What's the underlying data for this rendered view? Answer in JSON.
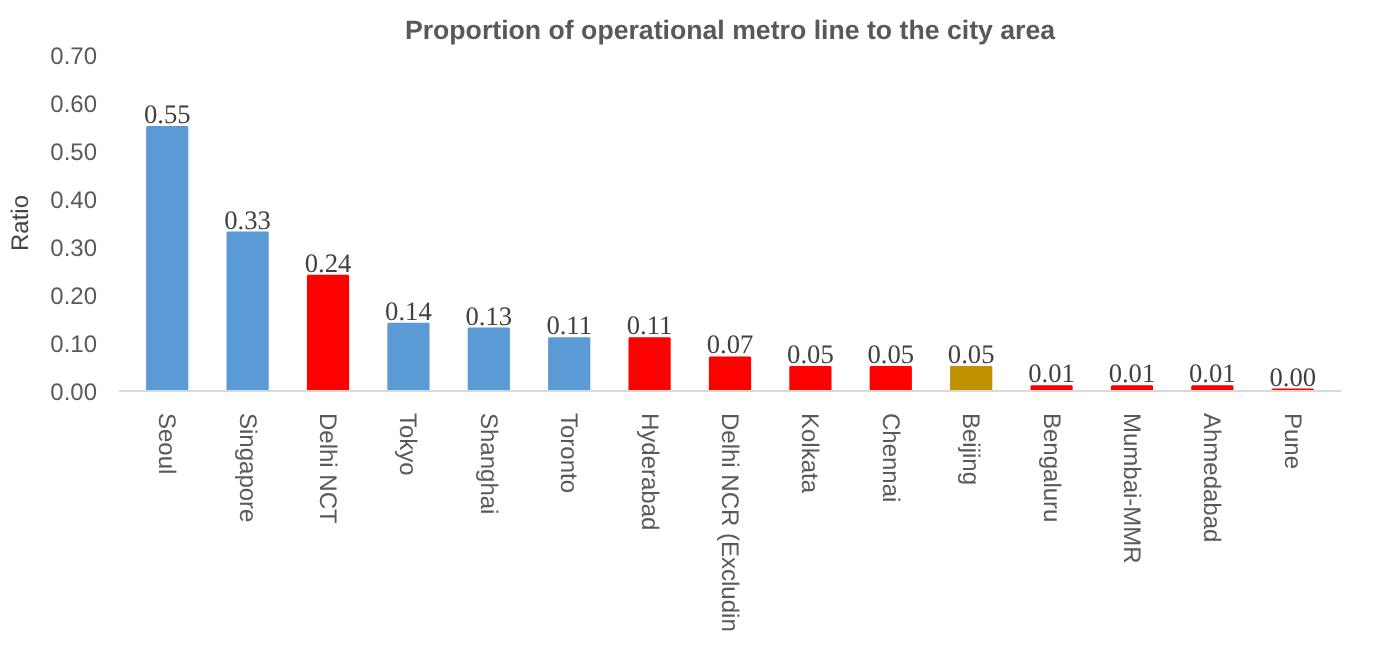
{
  "chart_data": {
    "type": "bar",
    "title": "Proportion of operational metro line to the city area",
    "ylabel": "Ratio",
    "categories": [
      "Seoul",
      "Singapore",
      "Delhi NCT",
      "Tokyo",
      "Shanghai",
      "Toronto",
      "Hyderabad",
      "Delhi NCR (Excludin",
      "Kolkata",
      "Chennai",
      "Beijing",
      "Bengaluru",
      "Mumbai-MMR",
      "Ahmedabad",
      "Pune"
    ],
    "values": [
      0.55,
      0.33,
      0.24,
      0.14,
      0.13,
      0.11,
      0.11,
      0.07,
      0.05,
      0.05,
      0.05,
      0.01,
      0.01,
      0.01,
      0.003
    ],
    "colors": [
      "#5b9bd5",
      "#5b9bd5",
      "#ff0000",
      "#5b9bd5",
      "#5b9bd5",
      "#5b9bd5",
      "#ff0000",
      "#ff0000",
      "#ff0000",
      "#ff0000",
      "#bf9000",
      "#ff0000",
      "#ff0000",
      "#ff0000",
      "#ff0000"
    ],
    "value_labels": [
      "0.55",
      "0.33",
      "0.24",
      "0.14",
      "0.13",
      "0.11",
      "0.11",
      "0.07",
      "0.05",
      "0.05",
      "0.05",
      "0.01",
      "0.01",
      "0.01",
      "0.00"
    ],
    "ylim": [
      0,
      0.7
    ],
    "yticks": [
      {
        "value": 0,
        "label": "0.00"
      },
      {
        "value": 0.1,
        "label": "0.10"
      },
      {
        "value": 0.2,
        "label": "0.20"
      },
      {
        "value": 0.3,
        "label": "0.30"
      },
      {
        "value": 0.4,
        "label": "0.40"
      },
      {
        "value": 0.5,
        "label": "0.50"
      },
      {
        "value": 0.6,
        "label": "0.60"
      },
      {
        "value": 0.7,
        "label": "0.70"
      }
    ],
    "grid": false
  }
}
